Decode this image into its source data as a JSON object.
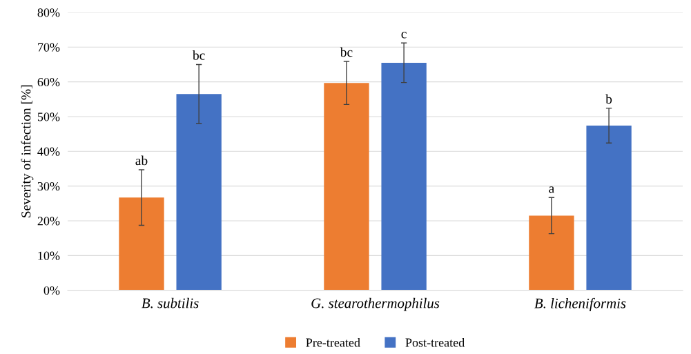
{
  "chart_data": {
    "type": "bar",
    "ylabel": "Severity of infection [%]",
    "categories": [
      "B. subtilis",
      "G. stearothermophilus",
      "B. licheniformis"
    ],
    "series": [
      {
        "name": "Pre-treated",
        "color": "#ed7d31",
        "values": [
          26.7,
          59.7,
          21.5
        ],
        "errors": [
          8,
          6.2,
          5.2
        ],
        "value_labels": [
          "ab",
          "bc",
          "a"
        ]
      },
      {
        "name": "Post-treated",
        "color": "#4472c4",
        "values": [
          56.5,
          65.5,
          47.4
        ],
        "errors": [
          8.5,
          5.7,
          5
        ],
        "value_labels": [
          "bc",
          "c",
          "b"
        ]
      }
    ],
    "ylim": [
      0,
      80
    ],
    "yticks": [
      {
        "value": 0,
        "label": "0%"
      },
      {
        "value": 10,
        "label": "10%"
      },
      {
        "value": 20,
        "label": "20%"
      },
      {
        "value": 30,
        "label": "30%"
      },
      {
        "value": 40,
        "label": "40%"
      },
      {
        "value": 50,
        "label": "50%"
      },
      {
        "value": 60,
        "label": "60%"
      },
      {
        "value": 70,
        "label": "70%"
      },
      {
        "value": 80,
        "label": "80%"
      }
    ],
    "grid": "y",
    "legend": "bottom"
  }
}
